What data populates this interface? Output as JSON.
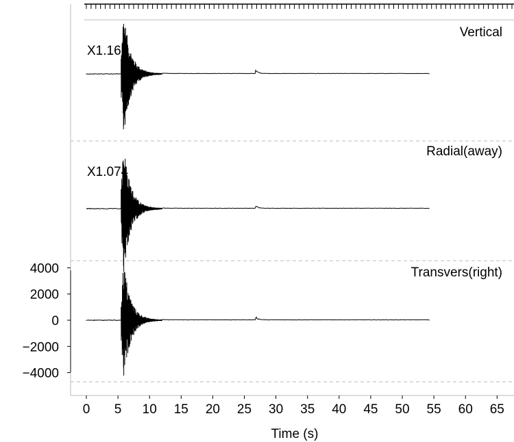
{
  "chart_data": {
    "type": "line",
    "xlabel": "Time (s)",
    "xlim": [
      -1.7,
      67.5
    ],
    "x_ticks": [
      0,
      5,
      10,
      15,
      20,
      25,
      30,
      35,
      40,
      45,
      50,
      55,
      60,
      65
    ],
    "ylim": [
      -4700,
      4700
    ],
    "y_ticks": [
      -4000,
      -2000,
      0,
      2000,
      4000
    ],
    "grid": false,
    "panels": [
      {
        "name": "Vertical",
        "scale_label": "X1.161",
        "onset_s": 5.5,
        "peak_amplitude": 4600,
        "secondary_arrival_s": 26.8,
        "secondary_amplitude": 280,
        "signal_end_s": 54.3
      },
      {
        "name": "Radial(away)",
        "scale_label": "X1.074",
        "onset_s": 5.5,
        "peak_amplitude": 4500,
        "secondary_arrival_s": 26.8,
        "secondary_amplitude": 200,
        "signal_end_s": 54.3
      },
      {
        "name": "Transvers(right)",
        "scale_label": "",
        "onset_s": 5.5,
        "peak_amplitude": 4600,
        "secondary_arrival_s": 26.8,
        "secondary_amplitude": 280,
        "signal_end_s": 54.3
      }
    ]
  }
}
